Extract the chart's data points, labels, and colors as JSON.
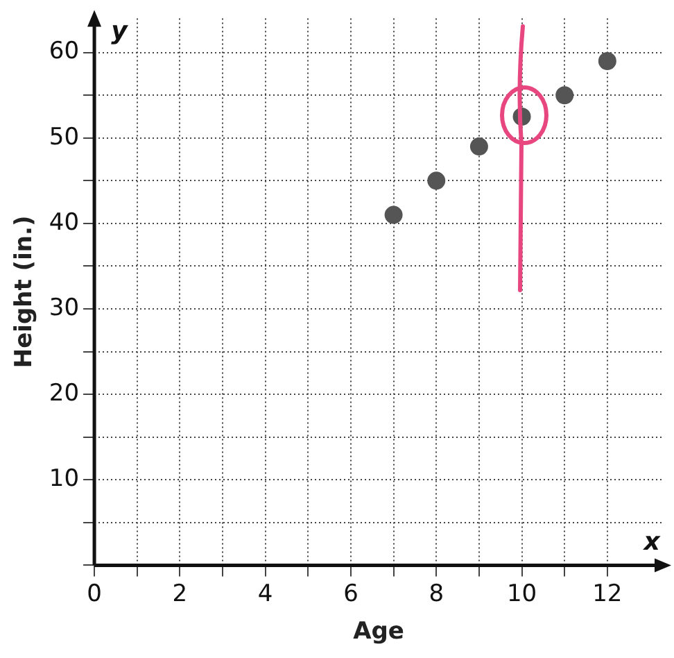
{
  "chart_data": {
    "type": "scatter",
    "xlabel": "Age",
    "ylabel": "Height (in.)",
    "x": [
      7,
      8,
      9,
      10,
      11,
      12
    ],
    "values": [
      41,
      45,
      49,
      52.5,
      55,
      59
    ],
    "color": "#555555",
    "marker": "circle",
    "grid": true,
    "xlim": [
      0,
      13.3
    ],
    "ylim": [
      0,
      64
    ],
    "xticks": [
      0,
      {
        "value": 1,
        "label": null
      },
      2,
      {
        "value": 3,
        "label": null
      },
      4,
      {
        "value": 5,
        "label": null
      },
      6,
      {
        "value": 7,
        "label": null
      },
      8,
      {
        "value": 9,
        "label": null
      },
      10,
      {
        "value": 11,
        "label": null
      },
      12
    ],
    "yticks": [
      {
        "value": 0,
        "label": null
      },
      {
        "value": 5,
        "label": null
      },
      10,
      {
        "value": 15,
        "label": null
      },
      20,
      {
        "value": 25,
        "label": null
      },
      30,
      {
        "value": 35,
        "label": null
      },
      40,
      {
        "value": 45,
        "label": null
      },
      50,
      {
        "value": 55,
        "label": null
      },
      60
    ],
    "annotations": [
      "y",
      "x"
    ]
  }
}
